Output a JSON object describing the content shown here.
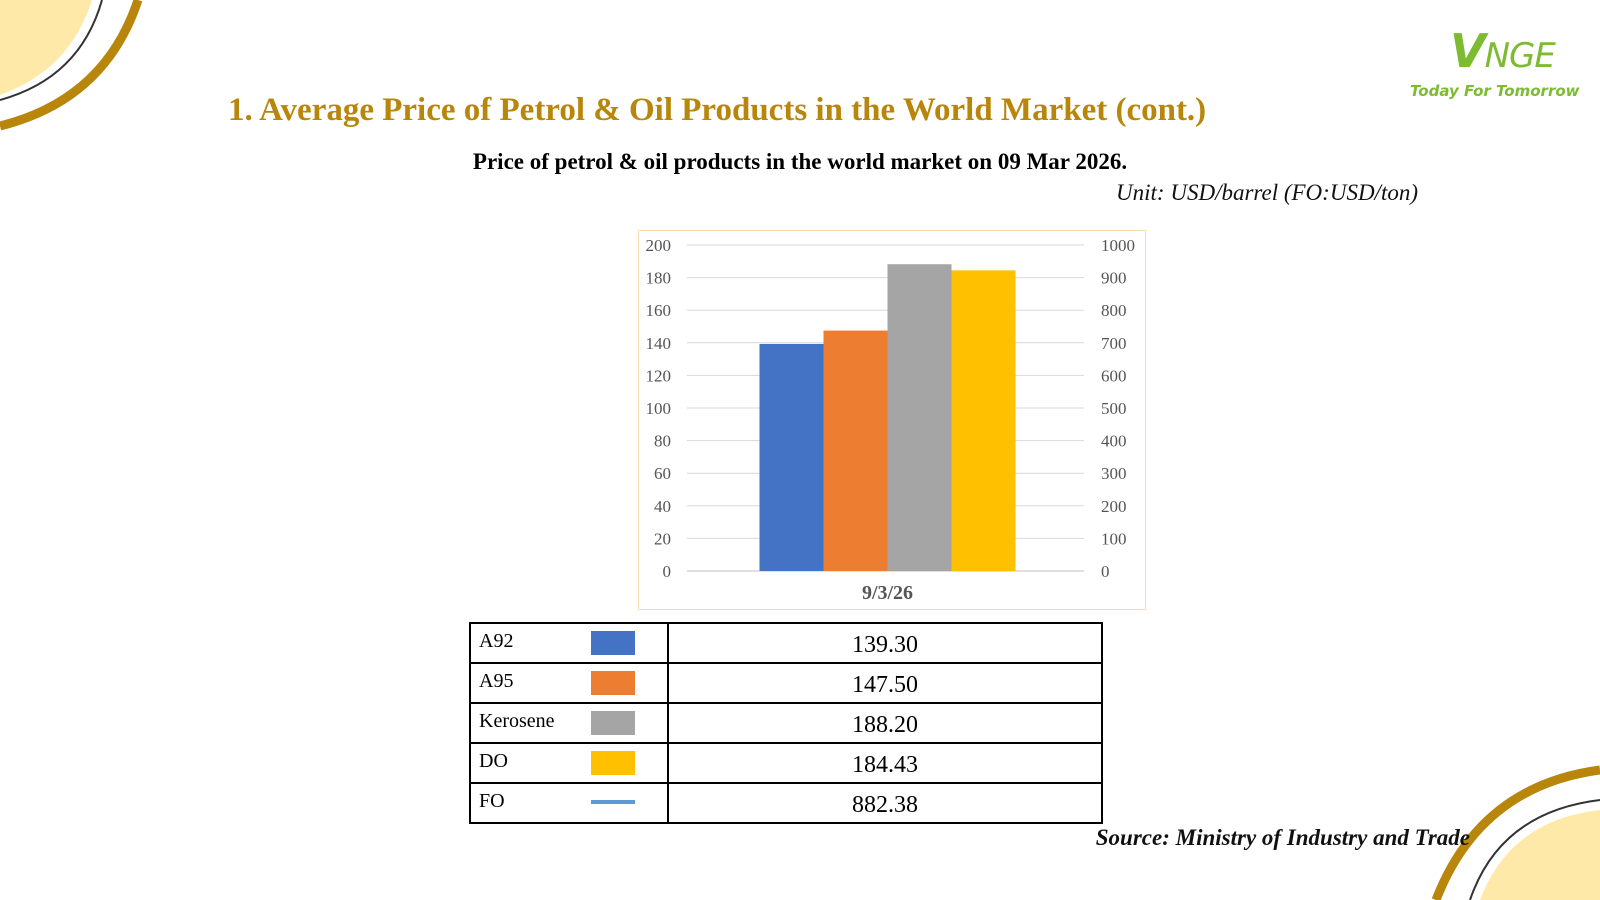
{
  "logo": {
    "mark": "VNGE",
    "tagline": "Today For Tomorrow"
  },
  "main_title": "1. Average Price of Petrol & Oil Products in the World Market (cont.)",
  "chart_title": "Price of petrol & oil products in the world market on 09 Mar 2026.",
  "unit_note": "Unit: USD/barrel (FO:USD/ton)",
  "source": "Source: Ministry of Industry and Trade",
  "colors": {
    "title": "#b8860b",
    "logo": "#7dbb33",
    "corner_fill": "#ffe9a8",
    "corner_stroke": "#b8860b",
    "chart_border": "#f3ddb0"
  },
  "chart_data": {
    "type": "bar",
    "categories": [
      "9/3/26"
    ],
    "series": [
      {
        "name": "A92",
        "values": [
          139.3
        ],
        "color": "#4472c4",
        "axis": "left"
      },
      {
        "name": "A95",
        "values": [
          147.5
        ],
        "color": "#ed7d31",
        "axis": "left"
      },
      {
        "name": "Kerosene",
        "values": [
          188.2
        ],
        "color": "#a5a5a5",
        "axis": "left"
      },
      {
        "name": "DO",
        "values": [
          184.43
        ],
        "color": "#ffc000",
        "axis": "left"
      },
      {
        "name": "FO",
        "values": [
          882.38
        ],
        "color": "#5b9bd5",
        "axis": "right",
        "mark": "line"
      }
    ],
    "y_left": {
      "min": 0,
      "max": 200,
      "step": 20,
      "ticks": [
        "0",
        "20",
        "40",
        "60",
        "80",
        "100",
        "120",
        "140",
        "160",
        "180",
        "200"
      ]
    },
    "y_right": {
      "min": 0,
      "max": 1000,
      "step": 100,
      "ticks": [
        "0",
        "100",
        "200",
        "300",
        "400",
        "500",
        "600",
        "700",
        "800",
        "900",
        "1000"
      ]
    },
    "grid": true,
    "legend": "table-below"
  },
  "legend_rows": [
    {
      "name": "A92",
      "value": "139.30",
      "color": "#4472c4",
      "mark": "box"
    },
    {
      "name": "A95",
      "value": "147.50",
      "color": "#ed7d31",
      "mark": "box"
    },
    {
      "name": "Kerosene",
      "value": "188.20",
      "color": "#a5a5a5",
      "mark": "box"
    },
    {
      "name": "DO",
      "value": "184.43",
      "color": "#ffc000",
      "mark": "box"
    },
    {
      "name": "FO",
      "value": "882.38",
      "color": "#5b9bd5",
      "mark": "line"
    }
  ]
}
